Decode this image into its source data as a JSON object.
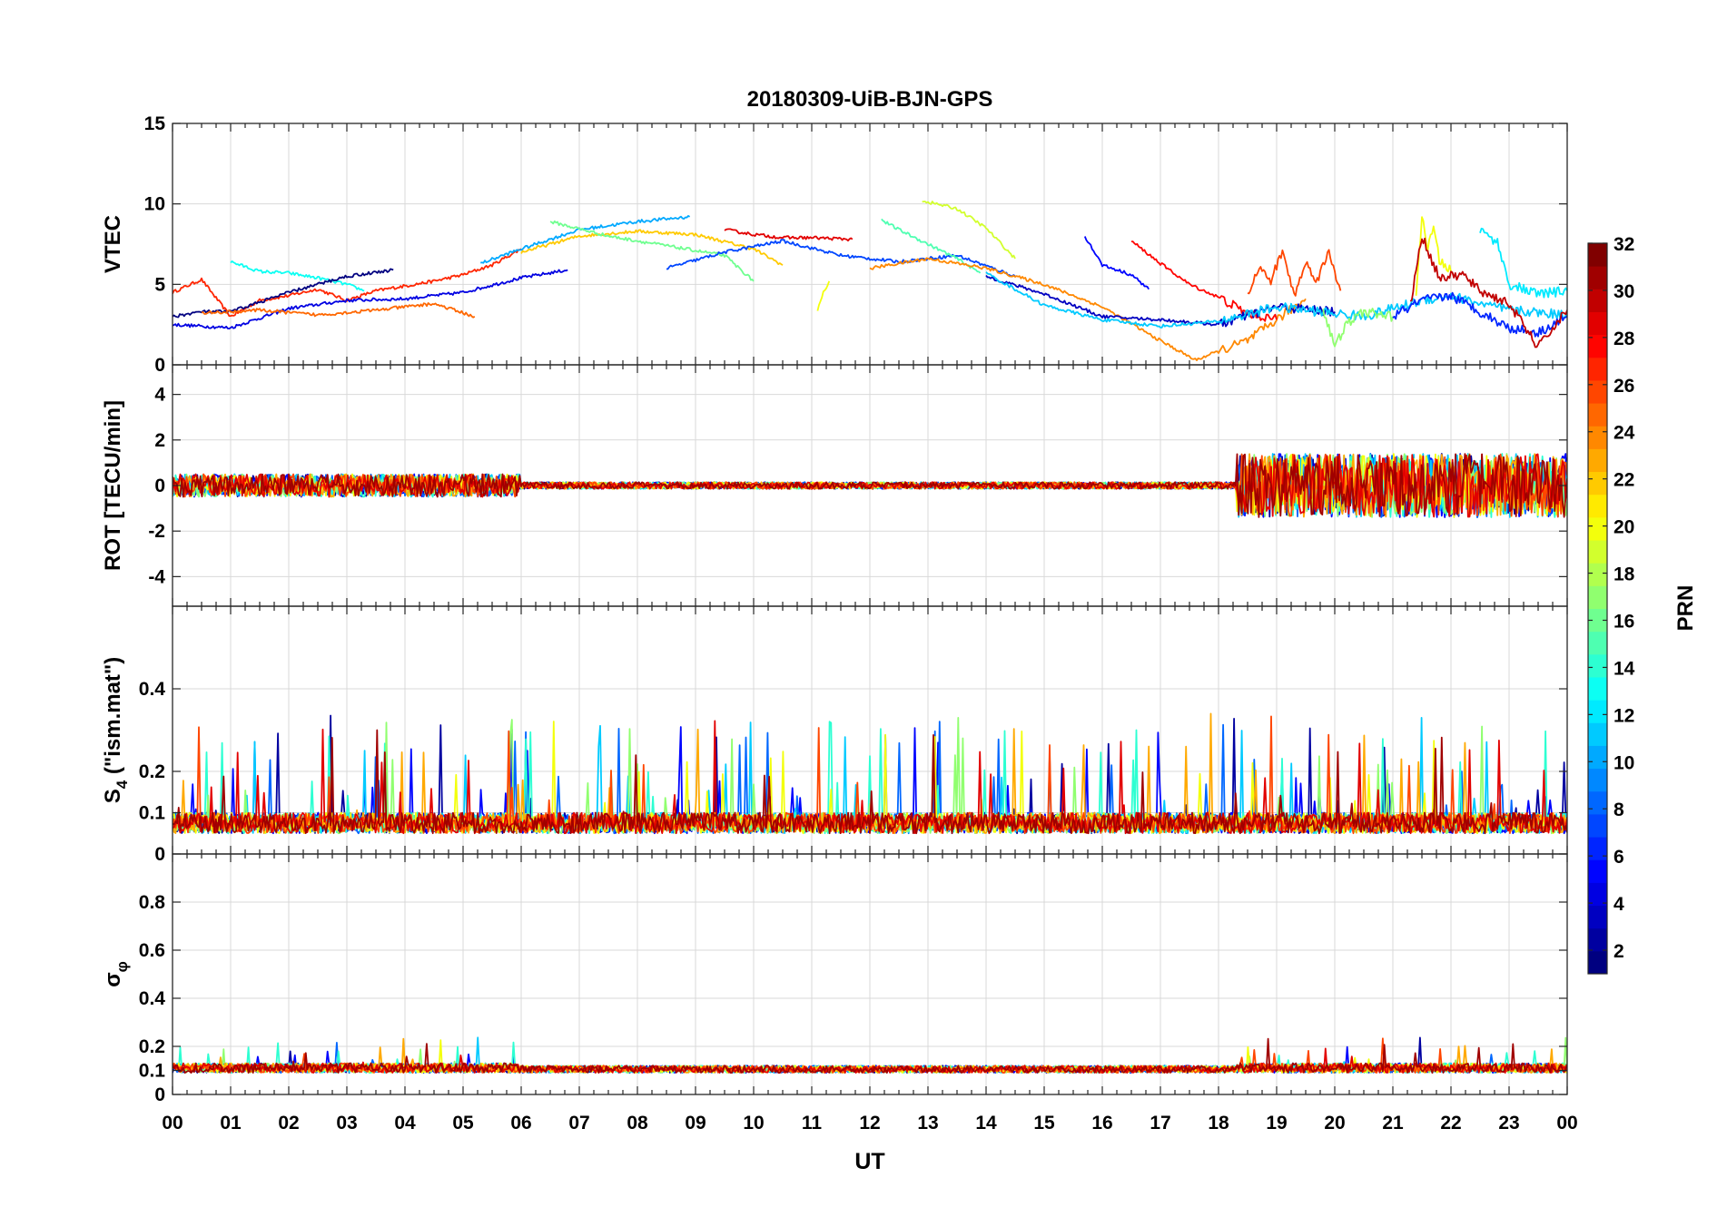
{
  "chart_data": {
    "type": "line",
    "title": "20180309-UiB-BJN-GPS",
    "xlabel": "UT",
    "x_tick_labels": [
      "00",
      "01",
      "02",
      "03",
      "04",
      "05",
      "06",
      "07",
      "08",
      "09",
      "10",
      "11",
      "12",
      "13",
      "14",
      "15",
      "16",
      "17",
      "18",
      "19",
      "20",
      "21",
      "22",
      "23",
      "00"
    ],
    "xlim_hours": [
      0,
      24
    ],
    "grid": true,
    "colormap": "jet",
    "panels": [
      {
        "id": "vtec",
        "ylabel": "VTEC",
        "ylim": [
          0,
          15
        ],
        "yticks": [
          0,
          5,
          10,
          15
        ],
        "ytick_labels": [
          "0",
          "5",
          "10",
          "15"
        ],
        "series": [
          {
            "prn": 27,
            "t": [
              0.0,
              0.5,
              1.0,
              1.5,
              2.0,
              2.5,
              3.0,
              3.5,
              4.0,
              4.5,
              5.0,
              5.5,
              6.0
            ],
            "v": [
              4.5,
              5.3,
              3.0,
              4.0,
              4.3,
              4.7,
              4.0,
              4.6,
              4.9,
              5.2,
              5.6,
              6.2,
              7.2
            ]
          },
          {
            "prn": 4,
            "t": [
              0.0,
              1.0,
              2.0,
              3.0,
              4.0,
              5.0,
              6.0,
              6.8
            ],
            "v": [
              2.5,
              2.3,
              3.5,
              4.0,
              4.1,
              4.5,
              5.4,
              5.9
            ]
          },
          {
            "prn": 13,
            "t": [
              1.0,
              1.5,
              2.0,
              2.5,
              3.0,
              3.3
            ],
            "v": [
              6.4,
              5.8,
              5.7,
              5.4,
              5.0,
              4.6
            ]
          },
          {
            "prn": 22,
            "t": [
              6.0,
              7.0,
              8.0,
              9.0,
              10.0,
              10.5
            ],
            "v": [
              7.0,
              8.0,
              8.3,
              8.1,
              7.2,
              6.2
            ]
          },
          {
            "prn": 10,
            "t": [
              5.3,
              6.0,
              7.0,
              8.0,
              8.9
            ],
            "v": [
              6.3,
              7.2,
              8.4,
              8.9,
              9.2
            ]
          },
          {
            "prn": 16,
            "t": [
              6.5,
              7.5,
              8.5,
              9.5,
              10.0
            ],
            "v": [
              8.9,
              8.0,
              7.4,
              6.8,
              5.2
            ]
          },
          {
            "prn": 29,
            "t": [
              9.5,
              10.0,
              10.5,
              11.0,
              11.7
            ],
            "v": [
              8.4,
              8.1,
              7.9,
              7.9,
              7.8
            ]
          },
          {
            "prn": 7,
            "t": [
              8.5,
              9.5,
              10.5,
              11.5,
              12.5,
              13.5,
              14.5
            ],
            "v": [
              6.0,
              7.0,
              7.7,
              6.8,
              6.4,
              6.8,
              5.5
            ]
          },
          {
            "prn": 20,
            "t": [
              11.1,
              11.2,
              11.3
            ],
            "v": [
              3.4,
              4.5,
              5.2
            ]
          },
          {
            "prn": 15,
            "t": [
              12.2,
              12.5,
              13.0,
              13.5,
              13.9
            ],
            "v": [
              9.0,
              8.4,
              7.5,
              6.6,
              5.7
            ]
          },
          {
            "prn": 19,
            "t": [
              12.9,
              13.5,
              14.0,
              14.5
            ],
            "v": [
              10.2,
              9.7,
              8.5,
              6.6
            ]
          },
          {
            "prn": 24,
            "t": [
              12.0,
              13.0,
              14.0,
              15.0,
              16.0,
              17.0,
              17.6,
              18.5,
              19.5
            ],
            "v": [
              6.0,
              6.6,
              6.0,
              5.0,
              3.6,
              1.5,
              0.3,
              1.5,
              4.1
            ]
          },
          {
            "prn": 5,
            "t": [
              15.7,
              16.0,
              16.5,
              16.8
            ],
            "v": [
              8.0,
              6.2,
              5.6,
              4.7
            ]
          },
          {
            "prn": 28,
            "t": [
              16.5,
              17.0,
              17.5,
              18.0,
              18.5,
              19.0
            ],
            "v": [
              7.7,
              6.3,
              5.0,
              4.2,
              3.2,
              2.8
            ]
          },
          {
            "prn": 3,
            "t": [
              14.0,
              15.0,
              16.0,
              17.0,
              18.0,
              19.0,
              20.0
            ],
            "v": [
              5.5,
              4.4,
              3.0,
              2.8,
              2.5,
              3.6,
              3.3
            ]
          },
          {
            "prn": 11,
            "t": [
              14.0,
              15.0,
              16.0,
              17.0,
              18.0,
              19.0,
              20.5,
              21.5,
              22.0,
              22.5,
              23.0,
              24.0
            ],
            "v": [
              5.7,
              3.7,
              2.8,
              2.4,
              2.7,
              3.6,
              3.0,
              4.0,
              4.3,
              3.8,
              3.4,
              3.1
            ]
          },
          {
            "prn": 26,
            "t": [
              18.5,
              18.7,
              18.9,
              19.1,
              19.3,
              19.5,
              19.7,
              19.9,
              20.1
            ],
            "v": [
              4.5,
              6.0,
              5.2,
              7.1,
              4.3,
              6.3,
              5.3,
              7.0,
              4.6
            ]
          },
          {
            "prn": 17,
            "t": [
              19.8,
              20.0,
              20.2,
              20.5,
              21.0
            ],
            "v": [
              3.5,
              1.1,
              2.5,
              3.3,
              3.0
            ]
          },
          {
            "prn": 20,
            "t": [
              21.4,
              21.5,
              21.6,
              21.7,
              21.8,
              22.0
            ],
            "v": [
              4.0,
              9.4,
              7.2,
              8.5,
              6.5,
              5.8
            ]
          },
          {
            "prn": 12,
            "t": [
              22.5,
              22.8,
              23.0,
              23.5,
              24.0
            ],
            "v": [
              8.4,
              7.6,
              5.0,
              4.4,
              4.6
            ]
          },
          {
            "prn": 6,
            "t": [
              21.0,
              21.5,
              22.0,
              22.5,
              23.0,
              23.5,
              24.0
            ],
            "v": [
              3.0,
              4.0,
              4.3,
              3.3,
              2.3,
              2.0,
              3.0
            ]
          },
          {
            "prn": 30,
            "t": [
              21.3,
              21.5,
              21.8,
              22.2,
              22.5,
              23.0,
              23.5,
              24.0
            ],
            "v": [
              3.7,
              8.0,
              5.4,
              5.6,
              4.6,
              3.8,
              1.1,
              3.4
            ]
          },
          {
            "prn": 1,
            "t": [
              0.0,
              0.5,
              1.0,
              2.0,
              3.0,
              3.8
            ],
            "v": [
              3.0,
              3.3,
              3.3,
              4.5,
              5.5,
              5.9
            ]
          },
          {
            "prn": 25,
            "t": [
              0.5,
              1.5,
              2.5,
              3.5,
              4.5,
              5.2
            ],
            "v": [
              3.2,
              3.4,
              3.1,
              3.4,
              3.8,
              3.0
            ]
          }
        ]
      },
      {
        "id": "rot",
        "ylabel": "ROT [TECU/min]",
        "ylim": [
          -5.3,
          5.3
        ],
        "yticks": [
          -4,
          -2,
          0,
          2,
          4
        ],
        "ytick_labels": [
          "-4",
          "-2",
          "0",
          "2",
          "4"
        ],
        "series": [
          {
            "prn": 30,
            "t": [
              0.0,
              1.0,
              2.0,
              3.0,
              4.0,
              5.0,
              5.5,
              6.0,
              7.0,
              8.0,
              10.0,
              12.0,
              14.0,
              16.0,
              18.0,
              18.5,
              19.0,
              19.5,
              20.0,
              20.5,
              21.0,
              21.5,
              22.0,
              22.5,
              23.0,
              23.5,
              24.0
            ],
            "v": [
              0.1,
              0.0,
              0.0,
              0.0,
              0.0,
              0.0,
              0.0,
              0.0,
              0.0,
              0.0,
              0.0,
              0.0,
              0.0,
              0.0,
              0.0,
              0.0,
              0.0,
              0.0,
              0.0,
              0.0,
              0.0,
              0.0,
              0.0,
              0.0,
              0.0,
              0.0,
              0.0
            ]
          }
        ]
      },
      {
        "id": "s4",
        "ylabel": "S4 (\"ism.mat\")",
        "ylabel_main": "S",
        "ylabel_sub": "4",
        "ylabel_rest": " (\"ism.mat\")",
        "ylim": [
          0,
          0.6
        ],
        "yticks": [
          0,
          0.1,
          0.2,
          0.4
        ],
        "ytick_labels": [
          "0",
          "0.1",
          "0.2",
          "0.4"
        ],
        "series": []
      },
      {
        "id": "sigma",
        "ylabel": "σφ",
        "ylabel_main": "σ",
        "ylabel_sub": "φ",
        "ylim": [
          0,
          1.0
        ],
        "yticks": [
          0,
          0.1,
          0.2,
          0.4,
          0.6,
          0.8
        ],
        "ytick_labels": [
          "0",
          "0.1",
          "0.2",
          "0.4",
          "0.6",
          "0.8"
        ],
        "series": []
      }
    ],
    "colorbar": {
      "label": "PRN",
      "range": [
        1,
        32
      ],
      "ticks": [
        2,
        4,
        6,
        8,
        10,
        12,
        14,
        16,
        18,
        20,
        22,
        24,
        26,
        28,
        30,
        32
      ],
      "tick_labels": [
        "2",
        "4",
        "6",
        "8",
        "10",
        "12",
        "14",
        "16",
        "18",
        "20",
        "22",
        "24",
        "26",
        "28",
        "30",
        "32"
      ]
    }
  }
}
